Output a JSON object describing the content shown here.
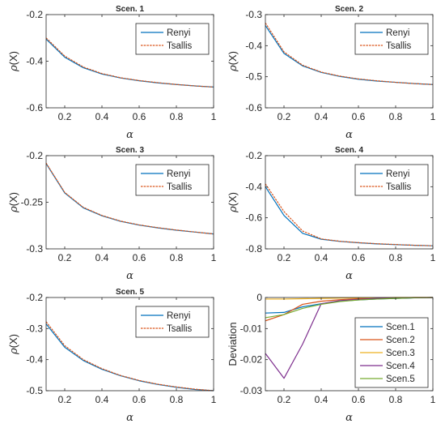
{
  "figure": {
    "colors": {
      "blue": "#0072BD",
      "orange": "#D95319",
      "yellow": "#EDB120",
      "purple": "#7E2F8E",
      "green": "#77AC30"
    },
    "x_symbol": "α",
    "y_symbol": "ρ",
    "y_suffix": "(X)"
  },
  "chart_data": [
    {
      "type": "line",
      "title": "Scen. 1",
      "xlabel": "α",
      "ylabel": "ρ(X)",
      "xlim": [
        0.1,
        1
      ],
      "ylim": [
        -0.6,
        -0.2
      ],
      "x_ticks": [
        "0.2",
        "0.4",
        "0.6",
        "0.8",
        "1"
      ],
      "y_ticks": [
        "-0.2",
        "-0.4",
        "-0.6"
      ],
      "legend_position": "top-right",
      "x": [
        0.1,
        0.2,
        0.3,
        0.4,
        0.5,
        0.6,
        0.7,
        0.8,
        0.9,
        1.0
      ],
      "series": [
        {
          "name": "Renyi",
          "color": "#0072BD",
          "values": [
            -0.305,
            -0.383,
            -0.428,
            -0.455,
            -0.472,
            -0.484,
            -0.493,
            -0.5,
            -0.506,
            -0.511
          ]
        },
        {
          "name": "Tsallis",
          "color": "#D95319",
          "values": [
            -0.3,
            -0.378,
            -0.425,
            -0.453,
            -0.471,
            -0.483,
            -0.492,
            -0.5,
            -0.506,
            -0.511
          ]
        }
      ]
    },
    {
      "type": "line",
      "title": "Scen. 2",
      "xlabel": "α",
      "ylabel": "ρ(X)",
      "xlim": [
        0.1,
        1
      ],
      "ylim": [
        -0.6,
        -0.3
      ],
      "x_ticks": [
        "0.2",
        "0.4",
        "0.6",
        "0.8",
        "1"
      ],
      "y_ticks": [
        "-0.3",
        "-0.4",
        "-0.5",
        "-0.6"
      ],
      "legend_position": "top-right",
      "x": [
        0.1,
        0.2,
        0.3,
        0.4,
        0.5,
        0.6,
        0.7,
        0.8,
        0.9,
        1.0
      ],
      "series": [
        {
          "name": "Renyi",
          "color": "#0072BD",
          "values": [
            -0.335,
            -0.425,
            -0.465,
            -0.486,
            -0.499,
            -0.508,
            -0.514,
            -0.518,
            -0.522,
            -0.525
          ]
        },
        {
          "name": "Tsallis",
          "color": "#D95319",
          "values": [
            -0.327,
            -0.42,
            -0.463,
            -0.485,
            -0.498,
            -0.507,
            -0.513,
            -0.518,
            -0.522,
            -0.525
          ]
        }
      ]
    },
    {
      "type": "line",
      "title": "Scen. 3",
      "xlabel": "α",
      "ylabel": "ρ(X)",
      "xlim": [
        0.1,
        1
      ],
      "ylim": [
        -0.3,
        -0.2
      ],
      "x_ticks": [
        "0.2",
        "0.4",
        "0.6",
        "0.8",
        "1"
      ],
      "y_ticks": [
        "-0.2",
        "-0.25",
        "-0.3"
      ],
      "legend_position": "top-right",
      "x": [
        0.1,
        0.2,
        0.3,
        0.4,
        0.5,
        0.6,
        0.7,
        0.8,
        0.9,
        1.0
      ],
      "series": [
        {
          "name": "Renyi",
          "color": "#0072BD",
          "values": [
            -0.2085,
            -0.24,
            -0.256,
            -0.2645,
            -0.2705,
            -0.2745,
            -0.2775,
            -0.28,
            -0.282,
            -0.284
          ]
        },
        {
          "name": "Tsallis",
          "color": "#D95319",
          "values": [
            -0.208,
            -0.2395,
            -0.2555,
            -0.2642,
            -0.2702,
            -0.2743,
            -0.2773,
            -0.2798,
            -0.2819,
            -0.284
          ]
        }
      ]
    },
    {
      "type": "line",
      "title": "Scen. 4",
      "xlabel": "α",
      "ylabel": "ρ(X)",
      "xlim": [
        0.1,
        1
      ],
      "ylim": [
        -0.8,
        -0.2
      ],
      "x_ticks": [
        "0.2",
        "0.4",
        "0.6",
        "0.8",
        "1"
      ],
      "y_ticks": [
        "-0.2",
        "-0.4",
        "-0.6",
        "-0.8"
      ],
      "legend_position": "top-right",
      "x": [
        0.1,
        0.2,
        0.3,
        0.4,
        0.5,
        0.6,
        0.7,
        0.8,
        0.9,
        1.0
      ],
      "series": [
        {
          "name": "Renyi",
          "color": "#0072BD",
          "values": [
            -0.4,
            -0.585,
            -0.7,
            -0.738,
            -0.752,
            -0.761,
            -0.768,
            -0.773,
            -0.777,
            -0.78
          ]
        },
        {
          "name": "Tsallis",
          "color": "#D95319",
          "values": [
            -0.382,
            -0.56,
            -0.685,
            -0.736,
            -0.751,
            -0.76,
            -0.767,
            -0.772,
            -0.777,
            -0.78
          ]
        }
      ]
    },
    {
      "type": "line",
      "title": "Scen. 5",
      "xlabel": "α",
      "ylabel": "ρ(X)",
      "xlim": [
        0.1,
        1
      ],
      "ylim": [
        -0.5,
        -0.2
      ],
      "x_ticks": [
        "0.2",
        "0.4",
        "0.6",
        "0.8",
        "1"
      ],
      "y_ticks": [
        "-0.2",
        "-0.3",
        "-0.4",
        "-0.5"
      ],
      "legend_position": "top-right",
      "x": [
        0.1,
        0.2,
        0.3,
        0.4,
        0.5,
        0.6,
        0.7,
        0.8,
        0.9,
        1.0
      ],
      "series": [
        {
          "name": "Renyi",
          "color": "#0072BD",
          "values": [
            -0.285,
            -0.36,
            -0.403,
            -0.431,
            -0.452,
            -0.468,
            -0.48,
            -0.489,
            -0.496,
            -0.5
          ]
        },
        {
          "name": "Tsallis",
          "color": "#D95319",
          "values": [
            -0.278,
            -0.355,
            -0.4,
            -0.429,
            -0.451,
            -0.467,
            -0.479,
            -0.488,
            -0.495,
            -0.5
          ]
        }
      ]
    },
    {
      "type": "line",
      "title": "",
      "xlabel": "α",
      "ylabel": "Deviation",
      "xlim": [
        0.1,
        1
      ],
      "ylim": [
        -0.03,
        0
      ],
      "x_ticks": [
        "0.2",
        "0.4",
        "0.6",
        "0.8",
        "1"
      ],
      "y_ticks": [
        "0",
        "-0.01",
        "-0.02",
        "-0.03"
      ],
      "legend_position": "bottom-right",
      "x": [
        0.1,
        0.2,
        0.3,
        0.4,
        0.5,
        0.6,
        0.7,
        0.8,
        0.9,
        1.0
      ],
      "series": [
        {
          "name": "Scen.1",
          "color": "#0072BD",
          "values": [
            -0.005,
            -0.0048,
            -0.003,
            -0.002,
            -0.0012,
            -0.0008,
            -0.0005,
            -0.0003,
            -0.0001,
            0.0
          ]
        },
        {
          "name": "Scen.2",
          "color": "#D95319",
          "values": [
            -0.0075,
            -0.0055,
            -0.0022,
            -0.0012,
            -0.0007,
            -0.0004,
            -0.0002,
            -0.0001,
            0.0,
            0.0
          ]
        },
        {
          "name": "Scen.3",
          "color": "#EDB120",
          "values": [
            -0.0005,
            -0.0005,
            -0.0004,
            -0.0003,
            -0.0002,
            -0.0001,
            -0.0001,
            0.0,
            0.0,
            0.0
          ]
        },
        {
          "name": "Scen.4",
          "color": "#7E2F8E",
          "values": [
            -0.018,
            -0.026,
            -0.015,
            -0.002,
            -0.001,
            -0.0006,
            -0.0003,
            -0.0002,
            -0.0001,
            0.0
          ]
        },
        {
          "name": "Scen.5",
          "color": "#77AC30",
          "values": [
            -0.0065,
            -0.0055,
            -0.0035,
            -0.0022,
            -0.0013,
            -0.0008,
            -0.0005,
            -0.0003,
            -0.0001,
            0.0
          ]
        }
      ]
    }
  ]
}
